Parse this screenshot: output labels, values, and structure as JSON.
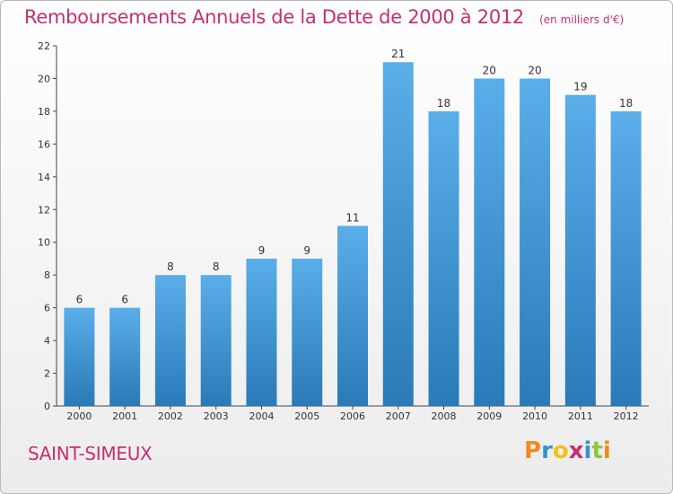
{
  "chart_data": {
    "type": "bar",
    "title": "Remboursements Annuels de la Dette de 2000 à 2012",
    "subtitle": "(en milliers d'€)",
    "categories": [
      "2000",
      "2001",
      "2002",
      "2003",
      "2004",
      "2005",
      "2006",
      "2007",
      "2008",
      "2009",
      "2010",
      "2011",
      "2012"
    ],
    "values": [
      6,
      6,
      8,
      8,
      9,
      9,
      11,
      21,
      18,
      20,
      20,
      19,
      18
    ],
    "ylim": [
      0,
      22
    ],
    "yticks": [
      0,
      2,
      4,
      6,
      8,
      10,
      12,
      14,
      16,
      18,
      20,
      22
    ],
    "grid": false,
    "bar_color_top": "#5aaee9",
    "bar_color_bottom": "#2a7ab8"
  },
  "footer": {
    "place": "SAINT-SIMEUX",
    "logo": "Proxiti",
    "logo_colors": [
      "#f08a1e",
      "#3d8fcc",
      "#f0c21b",
      "#c6306c",
      "#3d8fcc",
      "#8cc63f",
      "#f08a1e"
    ]
  }
}
